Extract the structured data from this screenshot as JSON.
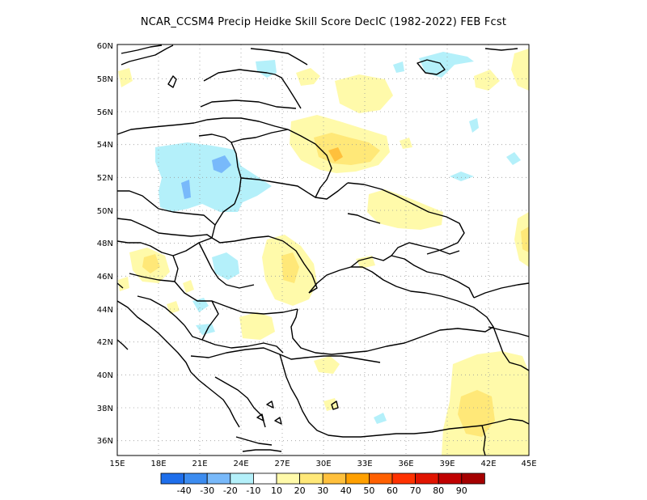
{
  "title": "NCAR_CCSM4 Precip Heidke Skill Score DecIC (1982-2022) FEB Fcst",
  "lat_labels": [
    "60N",
    "58N",
    "56N",
    "54N",
    "52N",
    "50N",
    "48N",
    "46N",
    "44N",
    "42N",
    "40N",
    "38N",
    "36N"
  ],
  "lon_labels": [
    "15E",
    "18E",
    "21E",
    "24E",
    "27E",
    "30E",
    "33E",
    "36E",
    "39E",
    "42E",
    "45E"
  ],
  "colorbar": {
    "colors": [
      "#1e6eeb",
      "#3c8cf0",
      "#78b9fa",
      "#b4f0fa",
      "#ffffff",
      "#fffaaa",
      "#ffe878",
      "#ffc03c",
      "#ffa000",
      "#ff6000",
      "#ff3200",
      "#e11400",
      "#c00000",
      "#a50000"
    ],
    "labels": [
      "-40",
      "-30",
      "-20",
      "-10",
      "10",
      "20",
      "30",
      "40",
      "50",
      "60",
      "70",
      "80",
      "90"
    ]
  },
  "map": {
    "extent": {
      "lon": [
        15,
        45
      ],
      "lat": [
        35,
        60
      ]
    },
    "features": [
      "coastlines",
      "country-borders",
      "skill-score-shading"
    ]
  }
}
